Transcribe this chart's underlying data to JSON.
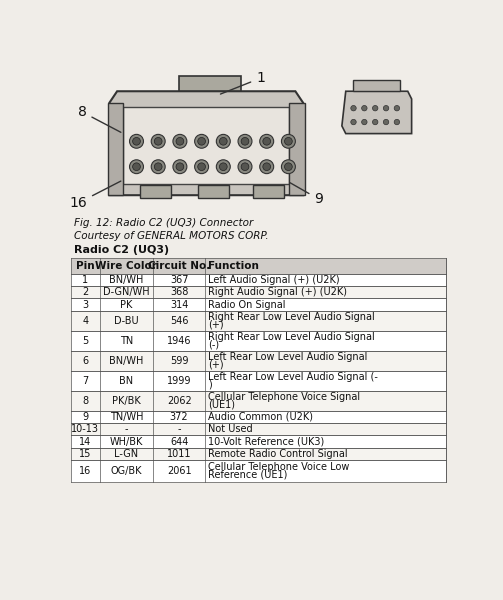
{
  "fig_caption_line1": "Fig. 12: Radio C2 (UQ3) Connector",
  "fig_caption_line2": "Courtesy of GENERAL MOTORS CORP.",
  "table_title": "Radio C2 (UQ3)",
  "col_headers": [
    "Pin",
    "Wire Color",
    "Circuit No.",
    "Function"
  ],
  "rows": [
    [
      "1",
      "BN/WH",
      "367",
      "Left Audio Signal (+) (U2K)",
      false
    ],
    [
      "2",
      "D-GN/WH",
      "368",
      "Right Audio Signal (+) (U2K)",
      false
    ],
    [
      "3",
      "PK",
      "314",
      "Radio On Signal",
      false
    ],
    [
      "4",
      "D-BU",
      "546",
      "Right Rear Low Level Audio Signal\n(+)",
      true
    ],
    [
      "5",
      "TN",
      "1946",
      "Right Rear Low Level Audio Signal\n(-)",
      true
    ],
    [
      "6",
      "BN/WH",
      "599",
      "Left Rear Low Level Audio Signal\n(+)",
      true
    ],
    [
      "7",
      "BN",
      "1999",
      "Left Rear Low Level Audio Signal (-\n)",
      true
    ],
    [
      "8",
      "PK/BK",
      "2062",
      "Cellular Telephone Voice Signal\n(UE1)",
      true
    ],
    [
      "9",
      "TN/WH",
      "372",
      "Audio Common (U2K)",
      false
    ],
    [
      "10-13",
      "-",
      "-",
      "Not Used",
      false
    ],
    [
      "14",
      "WH/BK",
      "644",
      "10-Volt Reference (UK3)",
      false
    ],
    [
      "15",
      "L-GN",
      "1011",
      "Remote Radio Control Signal",
      false
    ],
    [
      "16",
      "OG/BK",
      "2061",
      "Cellular Telephone Voice Low\nReference (UE1)",
      true
    ]
  ],
  "bg_color": "#f0ede8",
  "table_header_bg": "#d0ccc8",
  "border_color": "#555555",
  "text_color": "#111111",
  "row_h_map": [
    16,
    16,
    16,
    26,
    26,
    26,
    26,
    26,
    16,
    16,
    16,
    16,
    28
  ]
}
